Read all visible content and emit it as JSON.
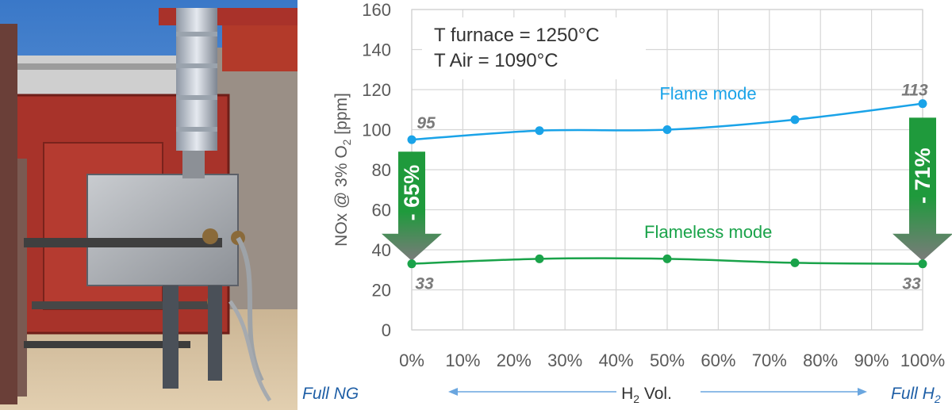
{
  "chart_data": {
    "type": "line",
    "x": [
      0,
      25,
      50,
      75,
      100
    ],
    "x_ticks": [
      "0%",
      "10%",
      "20%",
      "30%",
      "40%",
      "50%",
      "60%",
      "70%",
      "80%",
      "90%",
      "100%"
    ],
    "y_ticks": [
      "0",
      "20",
      "40",
      "60",
      "80",
      "100",
      "120",
      "140",
      "160"
    ],
    "ylim": [
      0,
      160
    ],
    "xlim": [
      0,
      100
    ],
    "ylabel": "NOx @ 3% O2 [ppm]",
    "grid": true,
    "series": [
      {
        "name": "Flame mode",
        "values": [
          95,
          99.5,
          100,
          105,
          113
        ],
        "color": "#1aa3e8"
      },
      {
        "name": "Flameless mode",
        "values": [
          33,
          35.5,
          35.5,
          33.5,
          33
        ],
        "color": "#1aa34a"
      }
    ],
    "data_labels": [
      {
        "x": 0,
        "y": 95,
        "text": "95"
      },
      {
        "x": 100,
        "y": 113,
        "text": "113"
      },
      {
        "x": 0,
        "y": 33,
        "text": "33"
      },
      {
        "x": 100,
        "y": 33,
        "text": "33"
      }
    ],
    "reductions": [
      {
        "x": 0,
        "text": "- 65%"
      },
      {
        "x": 100,
        "text": "- 71%"
      }
    ],
    "annotation": {
      "line1": "T furnace = 1250°C",
      "line2": "T Air = 1090°C"
    },
    "bottom_axis": {
      "left": "Full NG",
      "center": "H2 Vol.",
      "right": "Full H2"
    }
  },
  "colors": {
    "flame": "#1aa3e8",
    "flameless": "#1aa34a",
    "arrow_green": "#1f9a3c",
    "arrow_grey": "#7b7b7b",
    "axis_text": "#5a5a5a",
    "bottom_text": "#1f5fa6"
  },
  "photo": {
    "description_icon": "industrial-furnace-photo"
  }
}
